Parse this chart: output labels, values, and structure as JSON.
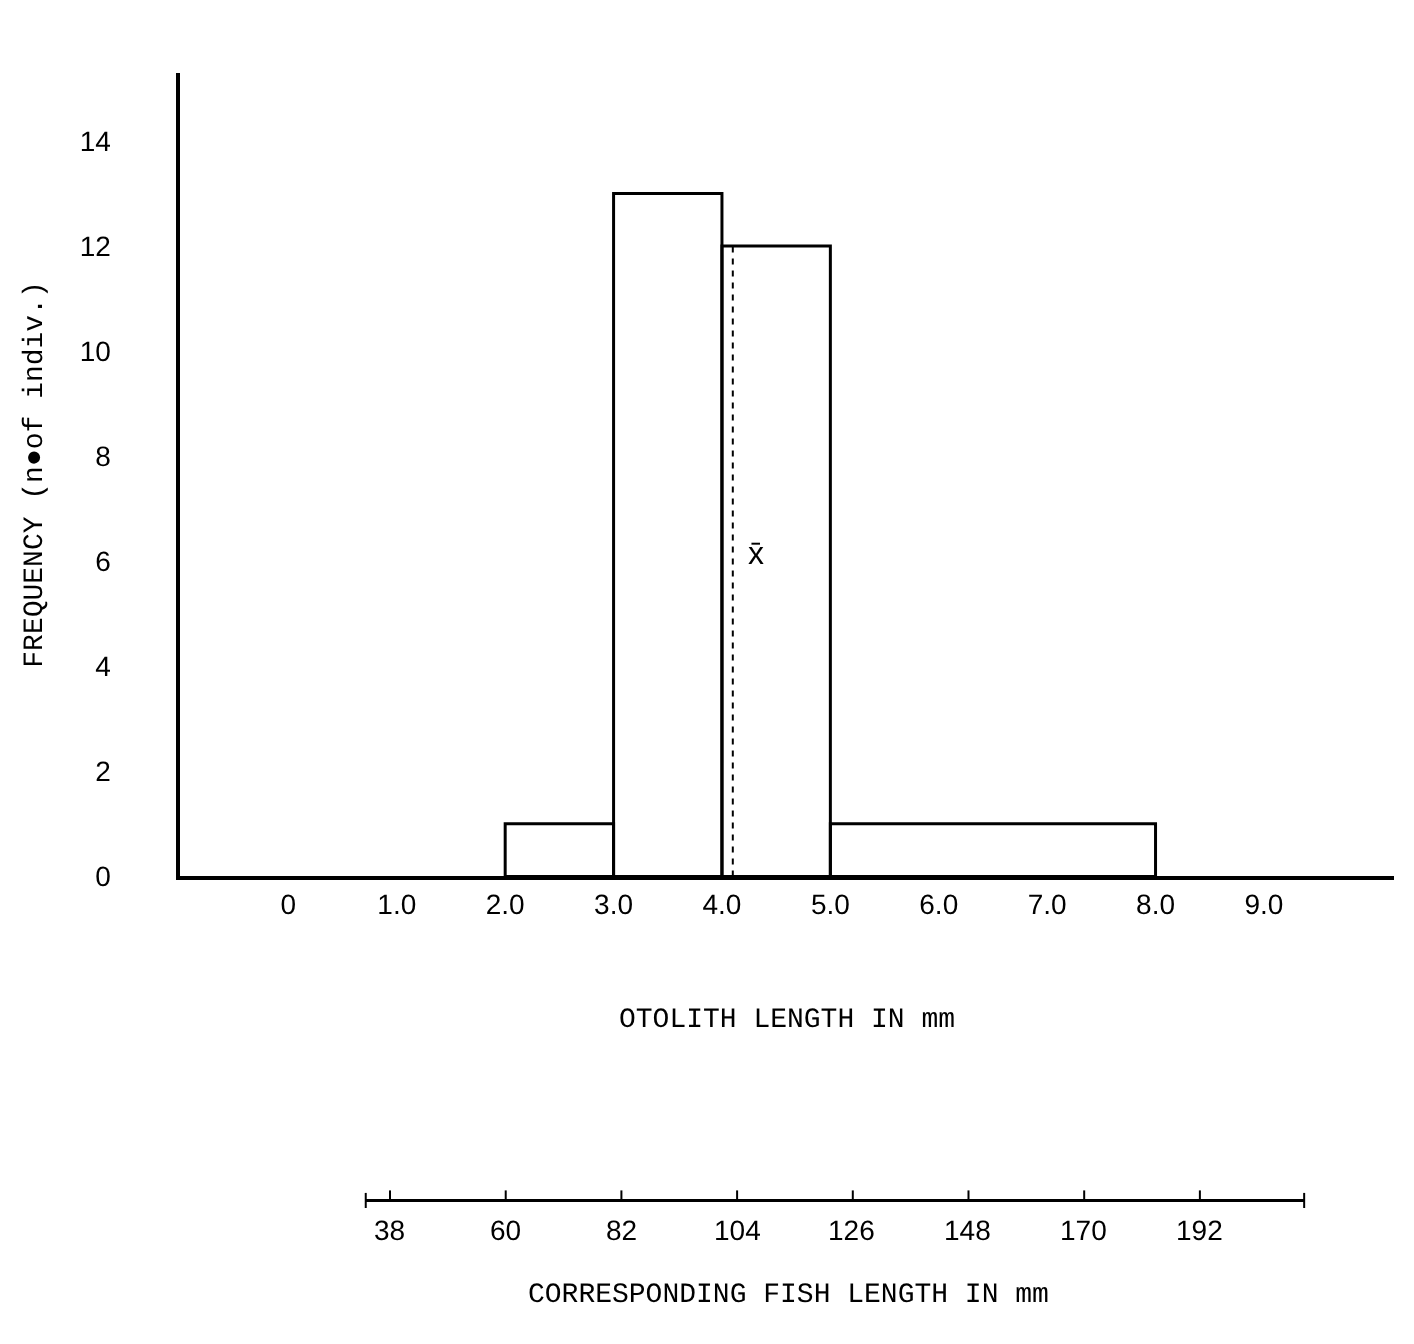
{
  "chart_data": {
    "type": "histogram",
    "bins": [
      2,
      3,
      4,
      5,
      8
    ],
    "values": [
      1,
      13,
      12,
      1
    ],
    "color": "#000000",
    "xlabel": "OTOLITH LENGTH IN mm",
    "ylabel": "FREQUENCY (n●of indiv.)",
    "x2label": "CORRESPONDING FISH LENGTH IN mm",
    "annotations": [
      "38",
      "60",
      "82",
      "104",
      "126",
      "148",
      "170",
      "192"
    ],
    "xlim": [
      -1,
      10.2
    ],
    "xticks": [
      0,
      {
        "value": 1,
        "label": "1.0"
      },
      {
        "value": 2,
        "label": "2.0"
      },
      {
        "value": 3,
        "label": "3.0"
      },
      {
        "value": 4,
        "label": "4.0"
      },
      {
        "value": 5,
        "label": "5.0"
      },
      {
        "value": 6,
        "label": "6.0"
      },
      {
        "value": 7,
        "label": "7.0"
      },
      {
        "value": 8,
        "label": "8.0"
      },
      {
        "value": 9,
        "label": "9.0"
      }
    ],
    "ylim": [
      0,
      15.3
    ],
    "yticks": [
      0,
      2,
      4,
      6,
      8,
      10,
      12,
      14
    ],
    "ref_lines": [
      {
        "axis": "x",
        "value": 4.1,
        "label": "x̄",
        "line_style": "dotted",
        "color": "#000000"
      }
    ],
    "legend": false
  }
}
